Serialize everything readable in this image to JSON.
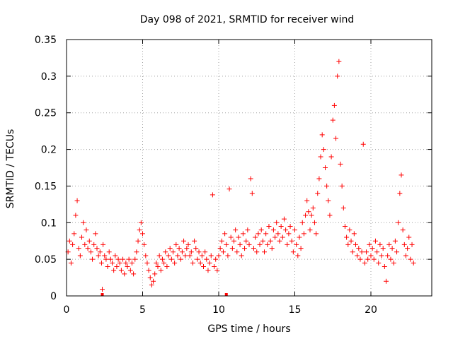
{
  "chart_data": {
    "type": "scatter",
    "title": "Day 098 of 2021, SRMTID for receiver wind",
    "xlabel": "GPS time / hours",
    "ylabel": "SRMTID / TECUs",
    "xlim": [
      0,
      24
    ],
    "ylim": [
      0,
      0.35
    ],
    "x_ticks": [
      0,
      5,
      10,
      15,
      20
    ],
    "x_tick_labels": [
      "0",
      "5",
      "10",
      "15",
      "20"
    ],
    "y_ticks": [
      0,
      0.05,
      0.1,
      0.15,
      0.2,
      0.25,
      0.3,
      0.35
    ],
    "y_tick_labels": [
      "0",
      "0.05",
      "0.1",
      "0.15",
      "0.2",
      "0.25",
      "0.3",
      "0.35"
    ],
    "grid": true,
    "marker": "+",
    "color": "#ff0000",
    "series": [
      {
        "name": "SRMTID",
        "points": [
          [
            0.1,
            0.06
          ],
          [
            0.2,
            0.075
          ],
          [
            0.3,
            0.045
          ],
          [
            0.4,
            0.07
          ],
          [
            0.5,
            0.085
          ],
          [
            0.6,
            0.11
          ],
          [
            0.7,
            0.13
          ],
          [
            0.8,
            0.065
          ],
          [
            0.9,
            0.055
          ],
          [
            1.0,
            0.08
          ],
          [
            1.1,
            0.1
          ],
          [
            1.2,
            0.07
          ],
          [
            1.3,
            0.09
          ],
          [
            1.4,
            0.065
          ],
          [
            1.5,
            0.075
          ],
          [
            1.6,
            0.06
          ],
          [
            1.7,
            0.05
          ],
          [
            1.8,
            0.07
          ],
          [
            1.9,
            0.085
          ],
          [
            2.0,
            0.065
          ],
          [
            2.1,
            0.055
          ],
          [
            2.2,
            0.06
          ],
          [
            2.3,
            0.045
          ],
          [
            2.35,
            0.009
          ],
          [
            2.4,
            0.07
          ],
          [
            2.5,
            0.055
          ],
          [
            2.6,
            0.05
          ],
          [
            2.7,
            0.04
          ],
          [
            2.8,
            0.06
          ],
          [
            2.9,
            0.05
          ],
          [
            3.0,
            0.045
          ],
          [
            3.1,
            0.035
          ],
          [
            3.2,
            0.055
          ],
          [
            3.3,
            0.04
          ],
          [
            3.4,
            0.05
          ],
          [
            3.5,
            0.045
          ],
          [
            3.6,
            0.035
          ],
          [
            3.7,
            0.05
          ],
          [
            3.8,
            0.03
          ],
          [
            3.9,
            0.045
          ],
          [
            4.0,
            0.04
          ],
          [
            4.1,
            0.05
          ],
          [
            4.2,
            0.035
          ],
          [
            4.3,
            0.045
          ],
          [
            4.4,
            0.03
          ],
          [
            4.5,
            0.05
          ],
          [
            4.6,
            0.06
          ],
          [
            4.7,
            0.075
          ],
          [
            4.8,
            0.09
          ],
          [
            4.9,
            0.1
          ],
          [
            5.0,
            0.085
          ],
          [
            5.1,
            0.07
          ],
          [
            5.2,
            0.055
          ],
          [
            5.3,
            0.045
          ],
          [
            5.4,
            0.035
          ],
          [
            5.5,
            0.025
          ],
          [
            5.6,
            0.015
          ],
          [
            5.7,
            0.02
          ],
          [
            5.8,
            0.03
          ],
          [
            5.9,
            0.045
          ],
          [
            6.0,
            0.04
          ],
          [
            6.1,
            0.055
          ],
          [
            6.2,
            0.035
          ],
          [
            6.3,
            0.05
          ],
          [
            6.4,
            0.045
          ],
          [
            6.5,
            0.06
          ],
          [
            6.6,
            0.04
          ],
          [
            6.7,
            0.055
          ],
          [
            6.8,
            0.065
          ],
          [
            6.9,
            0.05
          ],
          [
            7.0,
            0.06
          ],
          [
            7.1,
            0.045
          ],
          [
            7.2,
            0.07
          ],
          [
            7.3,
            0.055
          ],
          [
            7.4,
            0.065
          ],
          [
            7.5,
            0.05
          ],
          [
            7.6,
            0.06
          ],
          [
            7.7,
            0.075
          ],
          [
            7.8,
            0.055
          ],
          [
            7.9,
            0.065
          ],
          [
            8.0,
            0.07
          ],
          [
            8.1,
            0.055
          ],
          [
            8.2,
            0.06
          ],
          [
            8.3,
            0.045
          ],
          [
            8.4,
            0.075
          ],
          [
            8.5,
            0.065
          ],
          [
            8.6,
            0.05
          ],
          [
            8.7,
            0.06
          ],
          [
            8.8,
            0.045
          ],
          [
            8.9,
            0.055
          ],
          [
            9.0,
            0.04
          ],
          [
            9.1,
            0.06
          ],
          [
            9.2,
            0.05
          ],
          [
            9.3,
            0.035
          ],
          [
            9.4,
            0.045
          ],
          [
            9.5,
            0.055
          ],
          [
            9.6,
            0.138
          ],
          [
            9.7,
            0.04
          ],
          [
            9.8,
            0.05
          ],
          [
            9.9,
            0.035
          ],
          [
            10.0,
            0.055
          ],
          [
            10.1,
            0.065
          ],
          [
            10.2,
            0.075
          ],
          [
            10.3,
            0.06
          ],
          [
            10.4,
            0.085
          ],
          [
            10.5,
            0.07
          ],
          [
            10.6,
            0.055
          ],
          [
            10.7,
            0.146
          ],
          [
            10.8,
            0.08
          ],
          [
            10.9,
            0.065
          ],
          [
            11.0,
            0.075
          ],
          [
            11.1,
            0.09
          ],
          [
            11.2,
            0.06
          ],
          [
            11.3,
            0.08
          ],
          [
            11.4,
            0.07
          ],
          [
            11.5,
            0.055
          ],
          [
            11.6,
            0.085
          ],
          [
            11.7,
            0.065
          ],
          [
            11.8,
            0.075
          ],
          [
            11.9,
            0.09
          ],
          [
            12.0,
            0.07
          ],
          [
            12.1,
            0.16
          ],
          [
            12.2,
            0.14
          ],
          [
            12.3,
            0.065
          ],
          [
            12.4,
            0.08
          ],
          [
            12.5,
            0.06
          ],
          [
            12.6,
            0.085
          ],
          [
            12.7,
            0.07
          ],
          [
            12.8,
            0.09
          ],
          [
            12.9,
            0.075
          ],
          [
            13.0,
            0.06
          ],
          [
            13.1,
            0.085
          ],
          [
            13.2,
            0.07
          ],
          [
            13.3,
            0.095
          ],
          [
            13.4,
            0.075
          ],
          [
            13.5,
            0.065
          ],
          [
            13.6,
            0.09
          ],
          [
            13.7,
            0.08
          ],
          [
            13.8,
            0.1
          ],
          [
            13.9,
            0.085
          ],
          [
            14.0,
            0.075
          ],
          [
            14.1,
            0.095
          ],
          [
            14.2,
            0.08
          ],
          [
            14.3,
            0.105
          ],
          [
            14.4,
            0.09
          ],
          [
            14.5,
            0.07
          ],
          [
            14.6,
            0.085
          ],
          [
            14.7,
            0.095
          ],
          [
            14.8,
            0.075
          ],
          [
            14.9,
            0.06
          ],
          [
            15.0,
            0.09
          ],
          [
            15.1,
            0.07
          ],
          [
            15.2,
            0.055
          ],
          [
            15.3,
            0.08
          ],
          [
            15.4,
            0.065
          ],
          [
            15.5,
            0.1
          ],
          [
            15.6,
            0.085
          ],
          [
            15.7,
            0.11
          ],
          [
            15.8,
            0.13
          ],
          [
            15.9,
            0.115
          ],
          [
            16.0,
            0.09
          ],
          [
            16.1,
            0.11
          ],
          [
            16.2,
            0.12
          ],
          [
            16.3,
            0.1
          ],
          [
            16.4,
            0.085
          ],
          [
            16.5,
            0.14
          ],
          [
            16.6,
            0.16
          ],
          [
            16.7,
            0.19
          ],
          [
            16.8,
            0.22
          ],
          [
            16.9,
            0.2
          ],
          [
            17.0,
            0.175
          ],
          [
            17.1,
            0.15
          ],
          [
            17.2,
            0.13
          ],
          [
            17.3,
            0.11
          ],
          [
            17.4,
            0.19
          ],
          [
            17.5,
            0.24
          ],
          [
            17.6,
            0.26
          ],
          [
            17.7,
            0.215
          ],
          [
            17.8,
            0.3
          ],
          [
            17.9,
            0.32
          ],
          [
            18.0,
            0.18
          ],
          [
            18.1,
            0.15
          ],
          [
            18.2,
            0.12
          ],
          [
            18.3,
            0.095
          ],
          [
            18.4,
            0.08
          ],
          [
            18.5,
            0.07
          ],
          [
            18.6,
            0.09
          ],
          [
            18.7,
            0.075
          ],
          [
            18.8,
            0.06
          ],
          [
            18.9,
            0.085
          ],
          [
            19.0,
            0.07
          ],
          [
            19.1,
            0.055
          ],
          [
            19.2,
            0.065
          ],
          [
            19.3,
            0.05
          ],
          [
            19.4,
            0.06
          ],
          [
            19.5,
            0.207
          ],
          [
            19.6,
            0.045
          ],
          [
            19.7,
            0.06
          ],
          [
            19.8,
            0.05
          ],
          [
            19.9,
            0.07
          ],
          [
            20.0,
            0.055
          ],
          [
            20.1,
            0.065
          ],
          [
            20.2,
            0.05
          ],
          [
            20.3,
            0.075
          ],
          [
            20.4,
            0.06
          ],
          [
            20.5,
            0.045
          ],
          [
            20.6,
            0.07
          ],
          [
            20.7,
            0.055
          ],
          [
            20.8,
            0.065
          ],
          [
            20.9,
            0.04
          ],
          [
            21.0,
            0.02
          ],
          [
            21.1,
            0.055
          ],
          [
            21.2,
            0.07
          ],
          [
            21.3,
            0.05
          ],
          [
            21.4,
            0.065
          ],
          [
            21.5,
            0.045
          ],
          [
            21.6,
            0.075
          ],
          [
            21.7,
            0.06
          ],
          [
            21.8,
            0.1
          ],
          [
            21.9,
            0.14
          ],
          [
            22.0,
            0.165
          ],
          [
            22.1,
            0.09
          ],
          [
            22.2,
            0.07
          ],
          [
            22.3,
            0.055
          ],
          [
            22.4,
            0.065
          ],
          [
            22.5,
            0.08
          ],
          [
            22.6,
            0.05
          ],
          [
            22.7,
            0.07
          ],
          [
            22.8,
            0.045
          ]
        ]
      }
    ],
    "outliers_at_zero": [
      2.35,
      10.5
    ]
  }
}
